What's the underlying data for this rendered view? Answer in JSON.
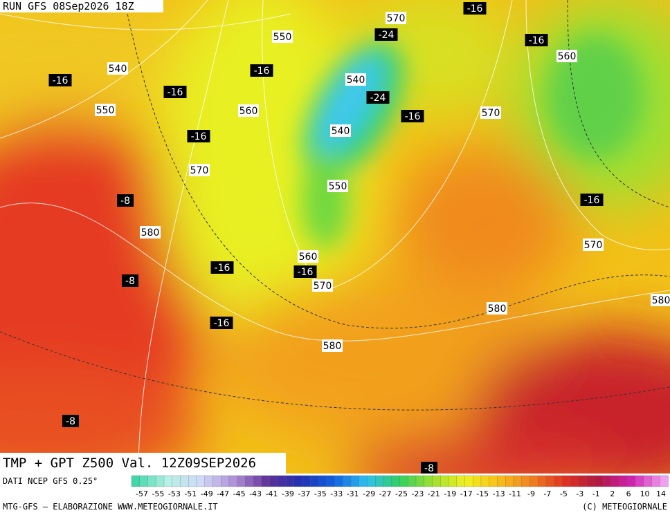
{
  "run_label": "RUN GFS 08Sep2026 18Z",
  "title": "TMP + GPT Z500 Val. 12Z09SEP2026",
  "source": "DATI NCEP GFS 0.25°",
  "credit_left": "MTG-GFS — ELABORAZIONE WWW.METEOGIORNALE.IT",
  "credit_right": "(C) METEOGIORNALE",
  "legend_labels": [
    -57,
    -55,
    -53,
    -51,
    -49,
    -47,
    -45,
    -43,
    -41,
    -39,
    -37,
    -35,
    -33,
    -31,
    -29,
    -27,
    -25,
    -23,
    -21,
    -19,
    -17,
    -15,
    -13,
    -11,
    -9,
    -7,
    -5,
    -3,
    -1,
    2,
    6,
    10,
    14
  ],
  "geopotential_labels": [
    "550",
    "540",
    "550",
    "560",
    "540",
    "540",
    "570",
    "560",
    "570",
    "570",
    "550",
    "580",
    "560",
    "570",
    "580",
    "580",
    "570",
    "580"
  ],
  "temperature_labels": [
    "-16",
    "-24",
    "-16",
    "-16",
    "-16",
    "-16",
    "-24",
    "-16",
    "-16",
    "-8",
    "-16",
    "-16",
    "-16",
    "-8",
    "-16",
    "-8",
    "-8"
  ]
}
